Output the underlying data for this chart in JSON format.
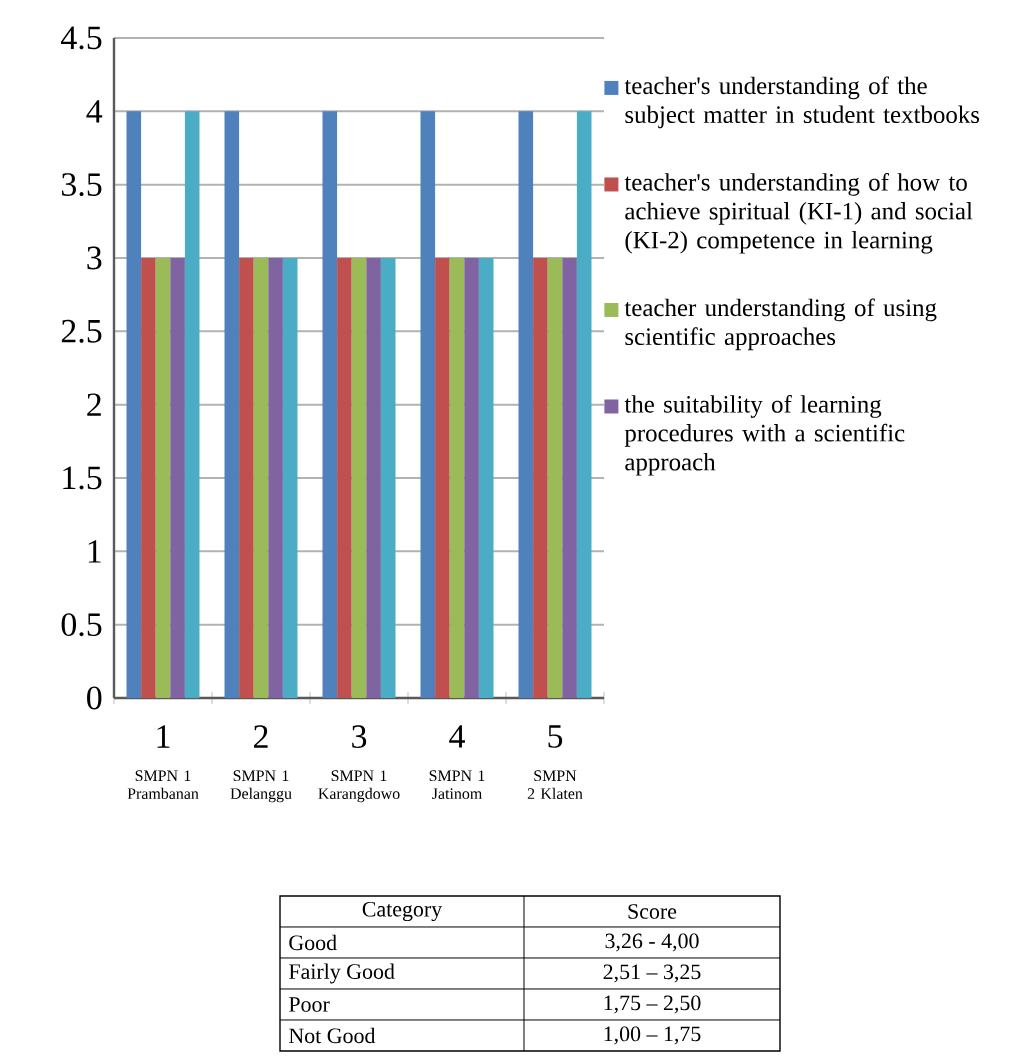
{
  "chart_data": {
    "type": "bar",
    "categories": [
      "1",
      "2",
      "3",
      "4",
      "5"
    ],
    "series": [
      {
        "name": "teacher's understanding of the subject matter in student textbooks",
        "color": "#4f81bd",
        "values": [
          4,
          4,
          4,
          4,
          4
        ]
      },
      {
        "name": "teacher's understanding of how to achieve spiritual (KI-1) and social (KI-2) competence in learning",
        "color": "#c0504d",
        "values": [
          3,
          3,
          3,
          3,
          3
        ]
      },
      {
        "name": "teacher understanding of using scientific approaches",
        "color": "#9bbb59",
        "values": [
          3,
          3,
          3,
          3,
          3
        ]
      },
      {
        "name": "the suitability of learning procedures with a scientific approach",
        "color": "#8064a2",
        "values": [
          3,
          3,
          3,
          3,
          3
        ]
      },
      {
        "color": "#4bacc6",
        "values": [
          4,
          3,
          3,
          3,
          4
        ]
      }
    ],
    "ylim": [
      0,
      4.5
    ],
    "yticks": [
      0,
      0.5,
      1,
      1.5,
      2,
      2.5,
      3,
      3.5,
      4,
      4.5
    ],
    "grid": "y",
    "legend": "right",
    "annotations": [
      "SMPN 1 Prambanan",
      "SMPN 1 Delanggu",
      "SMPN 1 Karangdowo",
      "SMPN 1 Jatinom",
      "SMPN 2 Klaten",
      "Category",
      "Score",
      "Good",
      "3,26 - 4,00",
      "Fairly Good",
      "2,51 – 3,25",
      "Poor",
      "1,75 – 2,50",
      "Not Good",
      "1,00 – 1,75"
    ]
  }
}
